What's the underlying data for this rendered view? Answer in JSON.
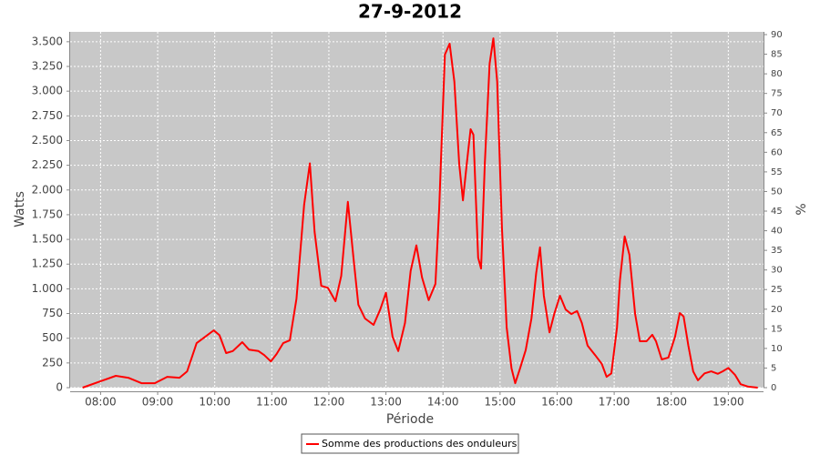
{
  "chart_data": {
    "type": "line",
    "title": "27-9-2012",
    "x_label": "Période",
    "y_label": "Watts",
    "y2_label": "%",
    "x": [
      "07:41",
      "08:00",
      "08:16",
      "08:29",
      "08:43",
      "08:57",
      "09:10",
      "09:23",
      "09:31",
      "09:41",
      "09:50",
      "09:59",
      "10:05",
      "10:12",
      "10:19",
      "10:29",
      "10:36",
      "10:46",
      "10:52",
      "10:59",
      "11:05",
      "11:12",
      "11:19",
      "11:26",
      "11:34",
      "11:40",
      "11:45",
      "11:52",
      "11:59",
      "12:07",
      "12:13",
      "12:20",
      "12:26",
      "12:31",
      "12:38",
      "12:47",
      "12:54",
      "13:00",
      "13:07",
      "13:13",
      "13:20",
      "13:26",
      "13:32",
      "13:38",
      "13:45",
      "13:52",
      "13:56",
      "14:02",
      "14:07",
      "14:12",
      "14:17",
      "14:21",
      "14:25",
      "14:29",
      "14:32",
      "14:37",
      "14:40",
      "14:44",
      "14:49",
      "14:53",
      "14:57",
      "15:02",
      "15:07",
      "15:12",
      "15:16",
      "15:21",
      "15:27",
      "15:33",
      "15:38",
      "15:42",
      "15:46",
      "15:52",
      "15:57",
      "16:03",
      "16:09",
      "16:15",
      "16:21",
      "16:26",
      "16:32",
      "16:40",
      "16:47",
      "16:52",
      "16:57",
      "17:03",
      "17:06",
      "17:11",
      "17:16",
      "17:22",
      "17:27",
      "17:34",
      "17:40",
      "17:44",
      "17:50",
      "17:57",
      "18:04",
      "18:09",
      "18:13",
      "18:18",
      "18:23",
      "18:28",
      "18:35",
      "18:42",
      "18:49",
      "18:54",
      "19:00",
      "19:07",
      "19:13",
      "19:21",
      "19:31"
    ],
    "series": [
      {
        "name": "Somme des productions des onduleurs",
        "color": "#ff0000",
        "values": [
          0,
          65,
          120,
          100,
          45,
          45,
          110,
          100,
          165,
          450,
          515,
          580,
          530,
          350,
          370,
          460,
          385,
          370,
          330,
          265,
          340,
          450,
          480,
          900,
          1850,
          2270,
          1575,
          1030,
          1010,
          875,
          1130,
          1880,
          1300,
          840,
          700,
          635,
          790,
          960,
          515,
          370,
          655,
          1180,
          1440,
          1115,
          885,
          1050,
          1805,
          3370,
          3480,
          3095,
          2265,
          1895,
          2265,
          2615,
          2560,
          1315,
          1205,
          2265,
          3280,
          3535,
          3095,
          1620,
          610,
          195,
          45,
          195,
          380,
          700,
          1160,
          1420,
          930,
          560,
          745,
          930,
          790,
          745,
          775,
          655,
          425,
          330,
          240,
          110,
          145,
          610,
          1085,
          1530,
          1345,
          745,
          470,
          470,
          535,
          470,
          285,
          305,
          515,
          755,
          720,
          425,
          165,
          75,
          145,
          165,
          140,
          165,
          200,
          130,
          35,
          10,
          0
        ]
      }
    ],
    "xlim": [
      "07:28",
      "19:37"
    ],
    "xticks": [
      "08:00",
      "09:00",
      "10:00",
      "11:00",
      "12:00",
      "13:00",
      "14:00",
      "15:00",
      "16:00",
      "17:00",
      "18:00",
      "19:00"
    ],
    "ylim": [
      0,
      3600
    ],
    "yticks": [
      0,
      250,
      500,
      750,
      {
        "value": 1000,
        "label": "1.000"
      },
      {
        "value": 1250,
        "label": "1.250"
      },
      {
        "value": 1500,
        "label": "1.500"
      },
      {
        "value": 1750,
        "label": "1.750"
      },
      {
        "value": 2000,
        "label": "2.000"
      },
      {
        "value": 2250,
        "label": "2.250"
      },
      {
        "value": 2500,
        "label": "2.500"
      },
      {
        "value": 2750,
        "label": "2.750"
      },
      {
        "value": 3000,
        "label": "3.000"
      },
      {
        "value": 3250,
        "label": "3.250"
      },
      {
        "value": 3500,
        "label": "3.500"
      }
    ],
    "y2lim": [
      0,
      90.7
    ],
    "y2ticks": [
      0,
      5,
      10,
      15,
      20,
      25,
      30,
      35,
      40,
      45,
      50,
      55,
      60,
      65,
      70,
      75,
      80,
      85,
      90
    ],
    "grid": true
  }
}
